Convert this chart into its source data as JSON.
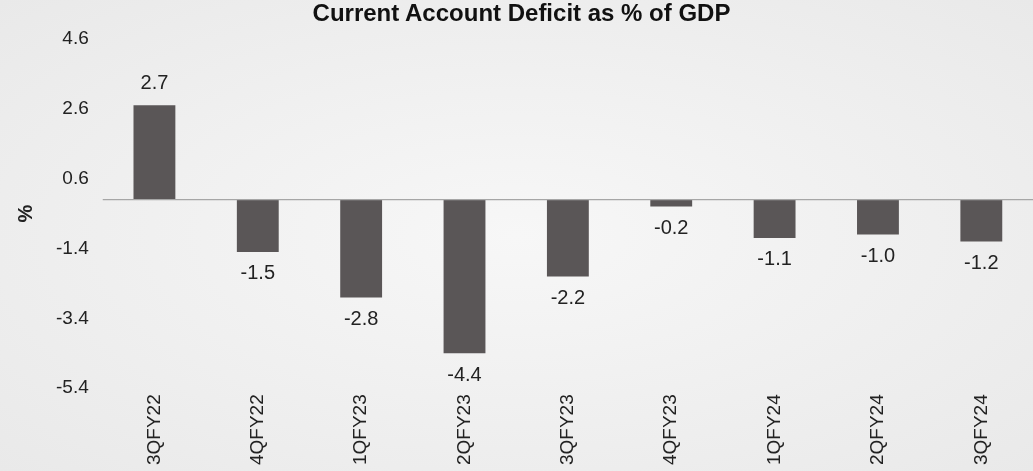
{
  "chart_data": {
    "type": "bar",
    "title": "Current Account Deficit as % of GDP",
    "ylabel": "%",
    "categories": [
      "3QFY22",
      "4QFY22",
      "1QFY23",
      "2QFY23",
      "3QFY23",
      "4QFY23",
      "1QFY24",
      "2QFY24",
      "3QFY24"
    ],
    "values": [
      2.7,
      -1.5,
      -2.8,
      -4.4,
      -2.2,
      -0.2,
      -1.1,
      -1.0,
      -1.2
    ],
    "value_labels": [
      "2.7",
      "-1.5",
      "-2.8",
      "-4.4",
      "-2.2",
      "-0.2",
      "-1.1",
      "-1.0",
      "-1.2"
    ],
    "color": "#5a5657",
    "ylim": [
      -5.4,
      4.6
    ],
    "yticks": [
      -5.4,
      -3.4,
      -1.4,
      0.6,
      2.6,
      4.6
    ],
    "grid": false,
    "legend": false
  }
}
